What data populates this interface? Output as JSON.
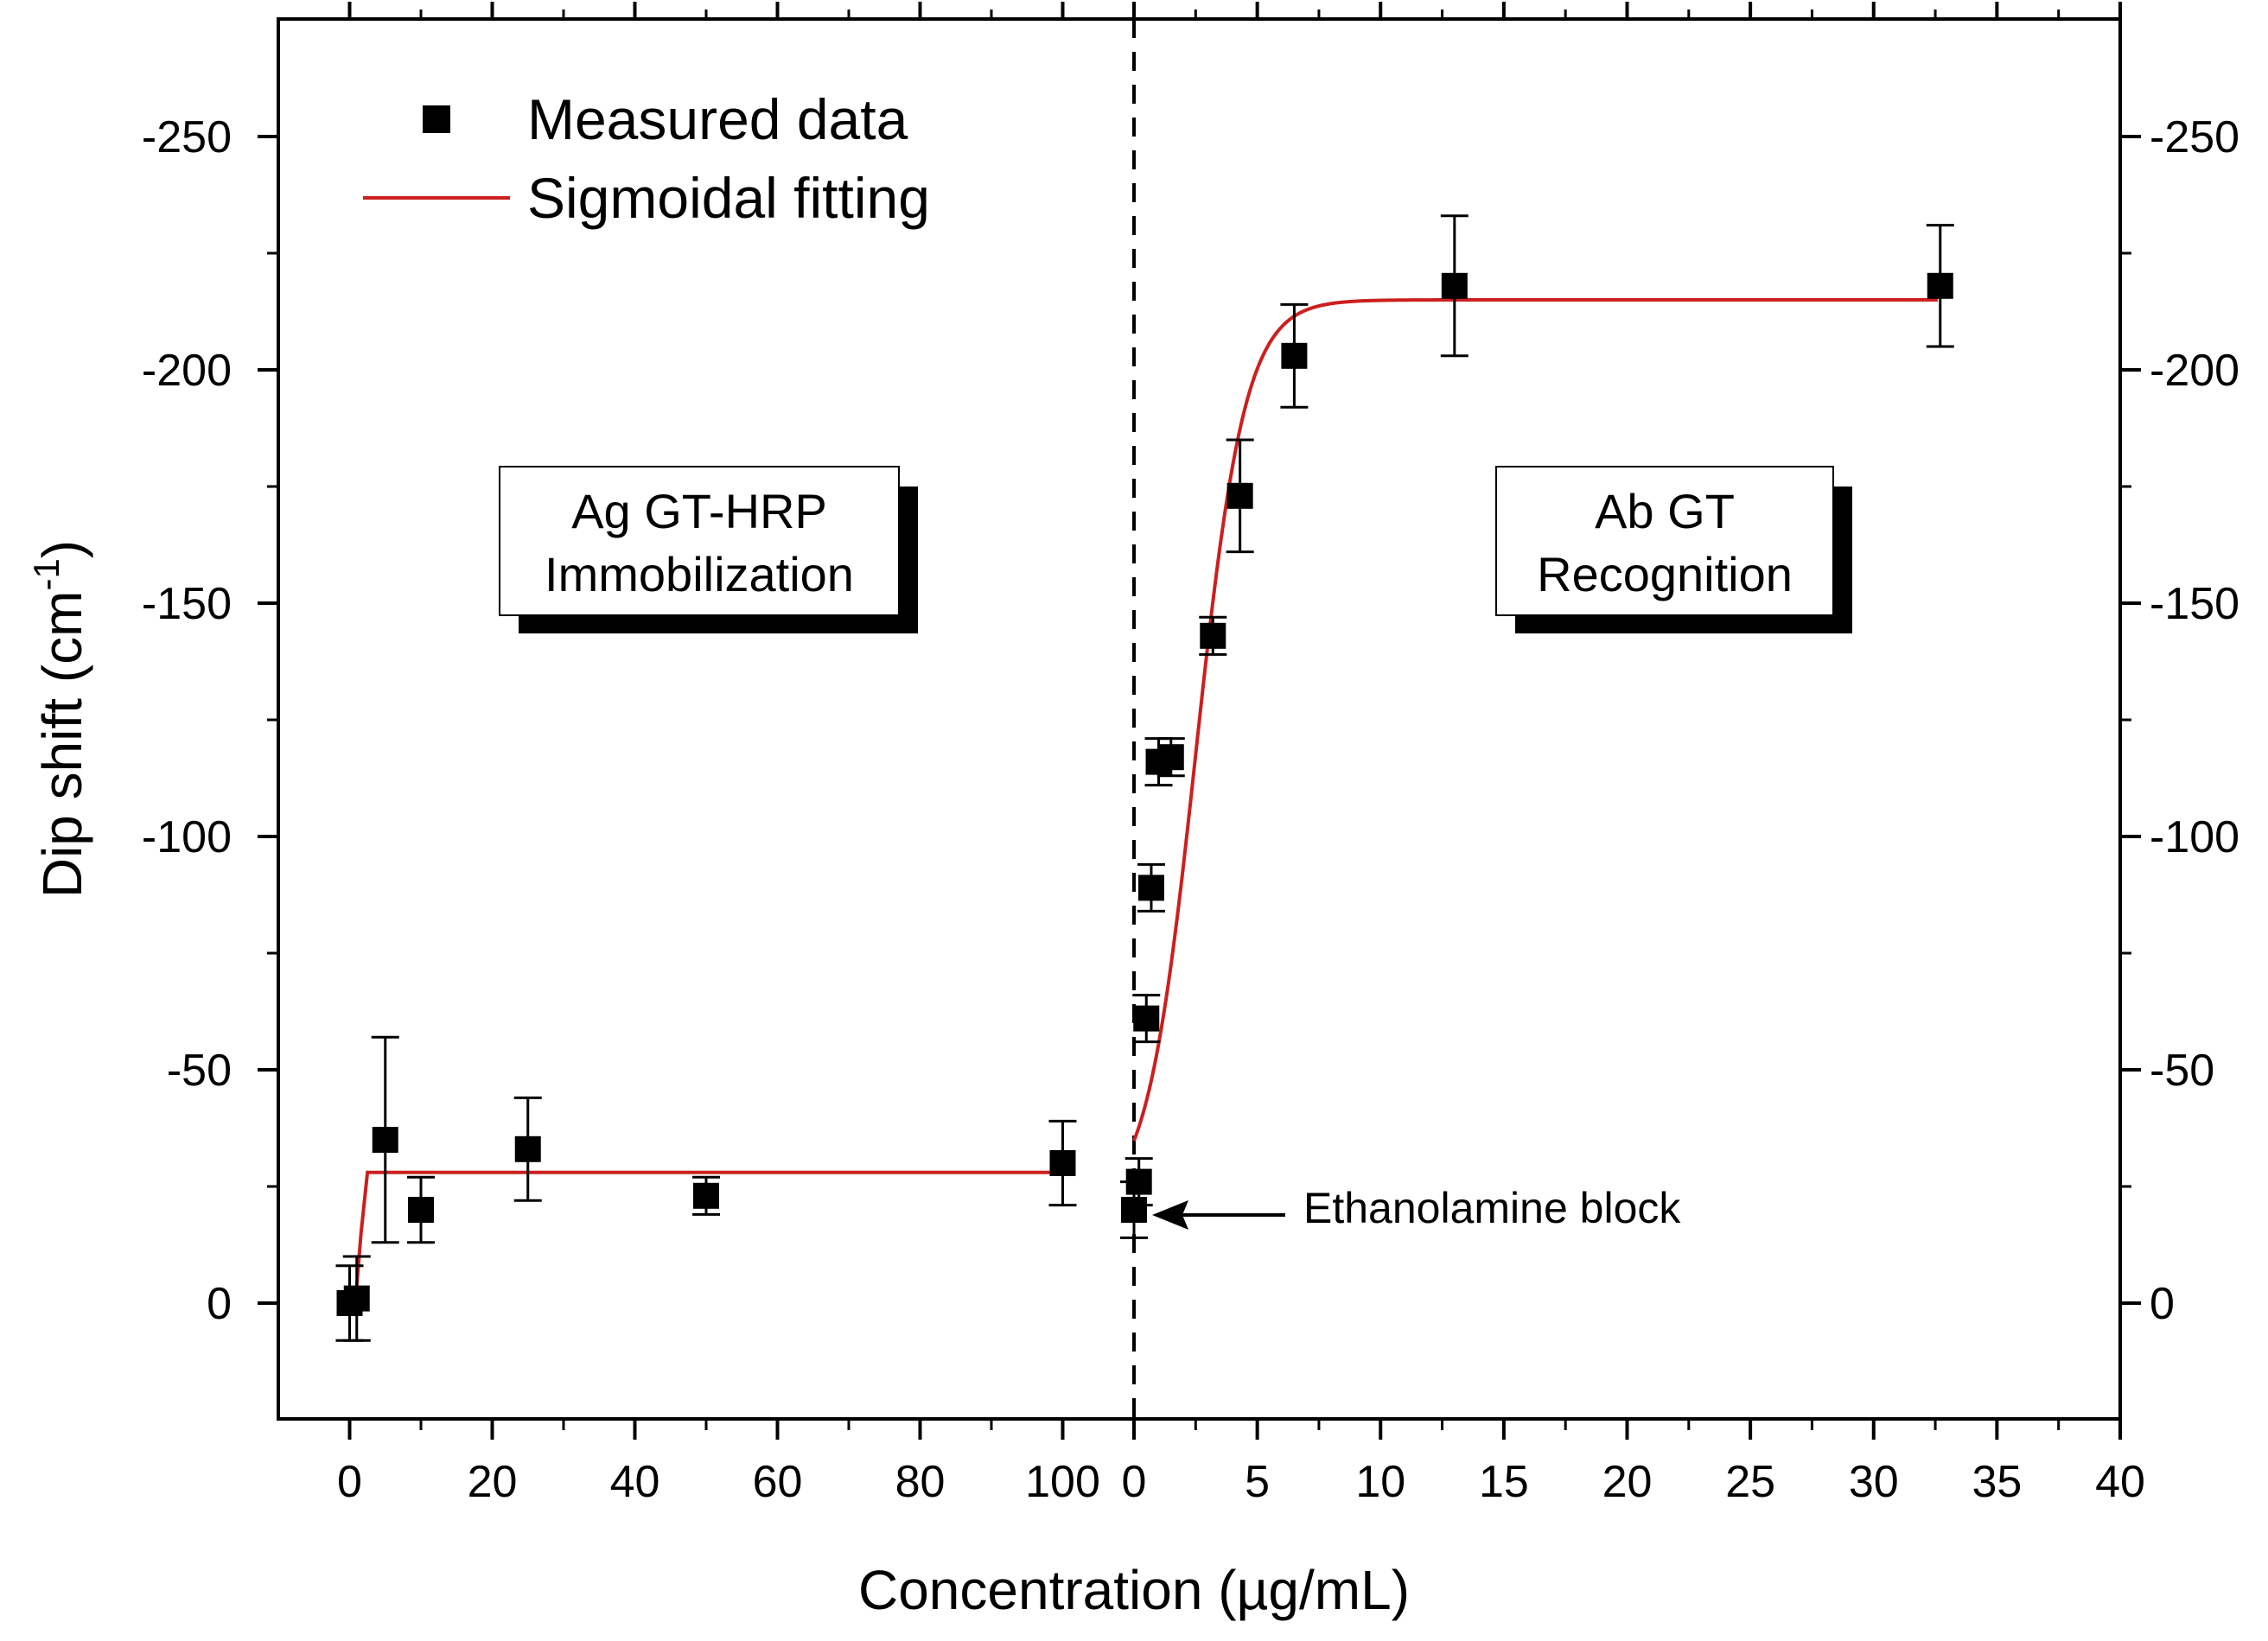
{
  "chart_data": {
    "type": "scatter",
    "ylabel": "Dip shift (cm",
    "ylabel_superscript": "-1",
    "ylabel_close": ")",
    "xlabel": "Concentration (µg/mL)",
    "ylim": [
      25,
      -275
    ],
    "y_ticks": [
      0,
      -50,
      -100,
      -150,
      -200,
      -250
    ],
    "y_tick_labels": [
      "0",
      "-50",
      "-100",
      "-150",
      "-200",
      "-250"
    ],
    "grid": false,
    "legend": {
      "position": "top-left",
      "entries": [
        {
          "name": "Measured data",
          "marker": "square",
          "color": "#000000"
        },
        {
          "name": "Sigmoidal fitting",
          "marker": "line",
          "color": "#cc1f1f"
        }
      ]
    },
    "panels": [
      {
        "name": "Ag GT-HRP Immobilization",
        "box_lines": [
          "Ag GT-HRP",
          "Immobilization"
        ],
        "xlim": [
          -10,
          110
        ],
        "x_ticks": [
          0,
          20,
          40,
          60,
          80,
          100
        ],
        "x_tick_labels": [
          "0",
          "20",
          "40",
          "60",
          "80",
          "100"
        ],
        "points": [
          {
            "x": 0,
            "y": 0,
            "err": 8
          },
          {
            "x": 1,
            "y": -1,
            "err": 9
          },
          {
            "x": 5,
            "y": -35,
            "err": 22
          },
          {
            "x": 10,
            "y": -20,
            "err": 7
          },
          {
            "x": 25,
            "y": -33,
            "err": 11
          },
          {
            "x": 50,
            "y": -23,
            "err": 4
          },
          {
            "x": 100,
            "y": -30,
            "err": 9
          }
        ],
        "fit": [
          [
            0,
            0
          ],
          [
            0.8,
            0
          ],
          [
            1.6,
            -15
          ],
          [
            2.5,
            -28
          ],
          [
            100,
            -28
          ]
        ]
      },
      {
        "name": "Ab GT Recognition",
        "box_lines": [
          "Ab GT",
          "Recognition"
        ],
        "xlim": [
          0,
          40
        ],
        "x_ticks": [
          0,
          5,
          10,
          15,
          20,
          25,
          30,
          35,
          40
        ],
        "x_tick_labels": [
          "0",
          "5",
          "10",
          "15",
          "20",
          "25",
          "30",
          "35",
          "40"
        ],
        "points": [
          {
            "x": 0,
            "y": -20,
            "err": 6
          },
          {
            "x": 0.2,
            "y": -26,
            "err": 5
          },
          {
            "x": 0.5,
            "y": -61,
            "err": 5
          },
          {
            "x": 0.7,
            "y": -89,
            "err": 5
          },
          {
            "x": 1.0,
            "y": -116,
            "err": 5
          },
          {
            "x": 1.5,
            "y": -117,
            "err": 4
          },
          {
            "x": 3.2,
            "y": -143,
            "err": 4
          },
          {
            "x": 4.3,
            "y": -173,
            "err": 12
          },
          {
            "x": 6.5,
            "y": -203,
            "err": 11
          },
          {
            "x": 13,
            "y": -218,
            "err": 15
          },
          {
            "x": 32.7,
            "y": -218,
            "err": 13
          }
        ],
        "fit_model": {
          "bottom": -20,
          "top": -215,
          "x50": 2.5,
          "k": 0.42
        }
      }
    ],
    "annotations": [
      {
        "text": "Ethanolamine block",
        "points_to": {
          "panel": 1,
          "x": 0.6,
          "y": -20
        }
      }
    ],
    "divider_style": "dashed"
  }
}
